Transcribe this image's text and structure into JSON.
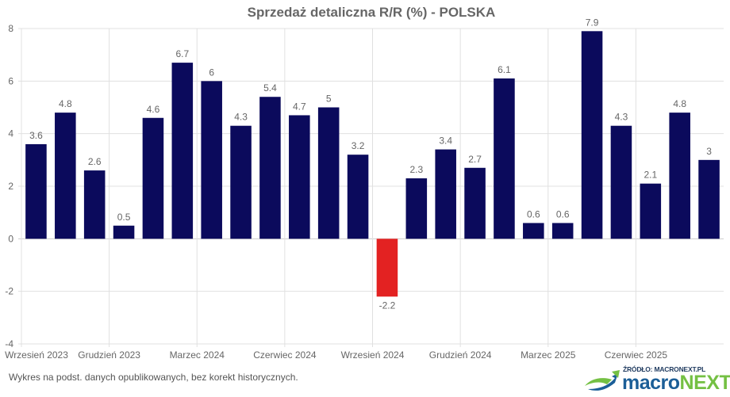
{
  "chart_data": {
    "type": "bar",
    "title": "Sprzedaż detaliczna R/R (%) - POLSKA",
    "xlabel": "",
    "ylabel": "",
    "ylim": [
      -4,
      8
    ],
    "yticks": [
      -4,
      -2,
      0,
      2,
      4,
      6,
      8
    ],
    "grid": true,
    "legend": "none",
    "categories": [
      "2023-09",
      "2023-10",
      "2023-11",
      "2023-12",
      "2024-01",
      "2024-02",
      "2024-03",
      "2024-04",
      "2024-05",
      "2024-06",
      "2024-07",
      "2024-08",
      "2024-09",
      "2024-10",
      "2024-11",
      "2024-12",
      "2025-01",
      "2025-02",
      "2025-03",
      "2025-04",
      "2025-05",
      "2025-06",
      "2025-07",
      "2025-08"
    ],
    "values": [
      3.6,
      4.8,
      2.6,
      0.5,
      4.6,
      6.7,
      6.0,
      4.3,
      5.4,
      4.7,
      5.0,
      3.2,
      -2.2,
      2.3,
      3.4,
      2.7,
      6.1,
      0.6,
      0.6,
      7.9,
      4.3,
      2.1,
      4.8,
      3.0
    ],
    "data_labels": [
      "3.6",
      "4.8",
      "2.6",
      "0.5",
      "4.6",
      "6.7",
      "6",
      "4.3",
      "5.4",
      "4.7",
      "5",
      "3.2",
      "-2.2",
      "2.3",
      "3.4",
      "2.7",
      "6.1",
      "0.6",
      "0.6",
      "7.9",
      "4.3",
      "2.1",
      "4.8",
      "3"
    ],
    "x_tick_labels": [
      {
        "index": 0,
        "label": "Wrzesień 2023"
      },
      {
        "index": 3,
        "label": "Grudzień 2023"
      },
      {
        "index": 6,
        "label": "Marzec 2024"
      },
      {
        "index": 9,
        "label": "Czerwiec 2024"
      },
      {
        "index": 12,
        "label": "Wrzesień 2024"
      },
      {
        "index": 15,
        "label": "Grudzień 2024"
      },
      {
        "index": 18,
        "label": "Marzec 2025"
      },
      {
        "index": 21,
        "label": "Czerwiec 2025"
      }
    ],
    "colors": {
      "positive": "#0b0a5c",
      "negative": "#e32222",
      "grid": "#e0e0e0",
      "text": "#666666"
    }
  },
  "footnote": "Wykres na podst. danych opublikowanych, bez korekt historycznych.",
  "logo": {
    "source_label": "ŹRÓDŁO: MACRONEXT.PL",
    "word_part1": "macro",
    "word_part2": "NEXT"
  }
}
